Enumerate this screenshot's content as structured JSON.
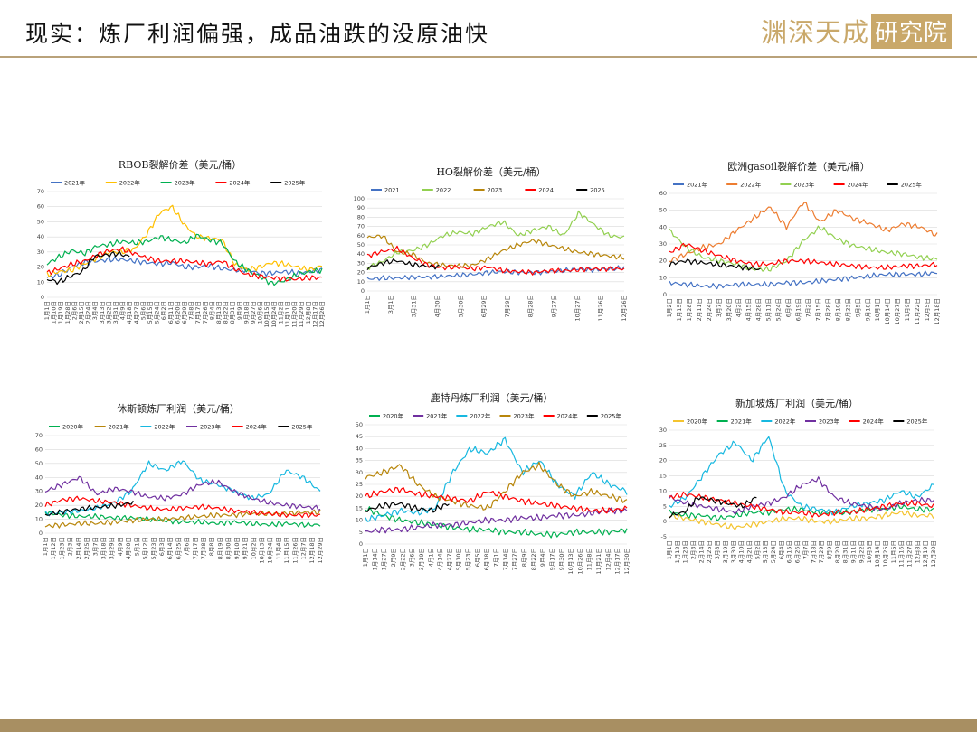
{
  "page": {
    "title": "现实：炼厂利润偏强，成品油跌的没原油快",
    "logo_text": "渊深天成",
    "logo_box": "研究院"
  },
  "chart_data": [
    {
      "type": "line",
      "title": "RBOB裂解价差（美元/桶）",
      "ylim": [
        0,
        70
      ],
      "yticks": [
        0,
        10,
        20,
        30,
        40,
        50,
        60,
        70
      ],
      "xticks": [
        "1月1日",
        "1月10日",
        "1月19日",
        "1月28日",
        "2月6日",
        "2月15日",
        "2月24日",
        "3月4日",
        "3月13日",
        "3月22日",
        "3月31日",
        "4月9日",
        "4月18日",
        "4月27日",
        "5月6日",
        "5月15日",
        "5月24日",
        "6月2日",
        "6月11日",
        "6月20日",
        "6月29日",
        "7月8日",
        "7月17日",
        "7月26日",
        "8月4日",
        "8月13日",
        "8月22日",
        "8月31日",
        "9月9日",
        "9月18日",
        "9月27日",
        "10月6日",
        "10月15日",
        "10月24日",
        "11月2日",
        "11月11日",
        "11月20日",
        "11月29日",
        "12月8日",
        "12月17日",
        "12月26日"
      ],
      "series": [
        {
          "name": "2021年",
          "color": "#4472c4",
          "end": 1.0,
          "values": [
            13,
            15,
            20,
            23,
            24,
            25,
            25,
            24,
            23,
            22,
            23,
            20,
            20,
            21,
            19,
            18,
            18,
            16,
            16,
            17,
            16,
            17,
            18
          ]
        },
        {
          "name": "2022年",
          "color": "#ffc000",
          "end": 1.0,
          "values": [
            15,
            17,
            18,
            22,
            26,
            30,
            30,
            32,
            42,
            56,
            60,
            48,
            40,
            39,
            38,
            22,
            18,
            20,
            23,
            22,
            20,
            18,
            21
          ]
        },
        {
          "name": "2023年",
          "color": "#00b050",
          "end": 1.0,
          "values": [
            22,
            27,
            31,
            29,
            34,
            35,
            37,
            36,
            37,
            40,
            38,
            36,
            41,
            38,
            36,
            24,
            18,
            14,
            9,
            11,
            15,
            17,
            18
          ]
        },
        {
          "name": "2024年",
          "color": "#ff0000",
          "end": 1.0,
          "values": [
            16,
            19,
            22,
            24,
            28,
            31,
            32,
            29,
            26,
            24,
            24,
            24,
            23,
            22,
            24,
            19,
            15,
            14,
            13,
            12,
            12,
            13,
            13
          ]
        },
        {
          "name": "2025年",
          "color": "#000000",
          "end": 0.3,
          "values": [
            12,
            10,
            14,
            17,
            27,
            28,
            29,
            27
          ]
        }
      ]
    },
    {
      "type": "line",
      "title": "HO裂解价差（美元/桶）",
      "ylim": [
        0,
        100
      ],
      "yticks": [
        0,
        10,
        20,
        30,
        40,
        50,
        60,
        70,
        80,
        90,
        100
      ],
      "xticks": [
        "1月1日",
        "3月1日",
        "3月31日",
        "4月30日",
        "5月30日",
        "6月29日",
        "7月29日",
        "8月28日",
        "9月27日",
        "10月27日",
        "11月26日",
        "12月26日"
      ],
      "series": [
        {
          "name": "2021",
          "color": "#4472c4",
          "end": 1.0,
          "values": [
            13,
            14,
            14,
            15,
            15,
            16,
            17,
            18,
            20,
            21,
            20,
            20,
            21,
            22,
            24,
            23,
            24,
            25
          ]
        },
        {
          "name": "2022",
          "color": "#92d050",
          "end": 1.0,
          "values": [
            25,
            32,
            42,
            44,
            50,
            60,
            64,
            62,
            70,
            75,
            60,
            66,
            70,
            60,
            85,
            72,
            60,
            58
          ]
        },
        {
          "name": "2023",
          "color": "#b8860b",
          "end": 1.0,
          "values": [
            58,
            60,
            42,
            40,
            30,
            28,
            27,
            28,
            35,
            44,
            50,
            55,
            50,
            46,
            42,
            40,
            38,
            36
          ]
        },
        {
          "name": "2024",
          "color": "#ff0000",
          "end": 1.0,
          "values": [
            38,
            43,
            46,
            36,
            28,
            25,
            26,
            24,
            26,
            22,
            21,
            20,
            22,
            22,
            23,
            24,
            24,
            24
          ]
        },
        {
          "name": "2025",
          "color": "#000000",
          "end": 0.28,
          "values": [
            25,
            30,
            33,
            29,
            27,
            26
          ]
        }
      ]
    },
    {
      "type": "line",
      "title": "欧洲gasoil裂解价差（美元/桶）",
      "ylim": [
        0,
        60
      ],
      "yticks": [
        0,
        10,
        20,
        30,
        40,
        50,
        60
      ],
      "xticks": [
        "1月2日",
        "1月15日",
        "1月28日",
        "2月11日",
        "2月24日",
        "3月7日",
        "3月20日",
        "4月2日",
        "4月15日",
        "4月28日",
        "5月11日",
        "5月24日",
        "6月6日",
        "6月19日",
        "7月2日",
        "7月15日",
        "7月28日",
        "8月10日",
        "8月23日",
        "9月5日",
        "9月18日",
        "10月1日",
        "10月14日",
        "10月27日",
        "11月9日",
        "11月22日",
        "12月5日",
        "12月18日"
      ],
      "series": [
        {
          "name": "2021年",
          "color": "#4472c4",
          "end": 1.0,
          "values": [
            7,
            6,
            5,
            5,
            6,
            6,
            6,
            7,
            7,
            8,
            9,
            10,
            11,
            12,
            12,
            12,
            13
          ]
        },
        {
          "name": "2022年",
          "color": "#ed7d31",
          "end": 1.0,
          "values": [
            20,
            24,
            28,
            30,
            38,
            45,
            52,
            40,
            55,
            43,
            50,
            45,
            42,
            38,
            42,
            40,
            35
          ]
        },
        {
          "name": "2023年",
          "color": "#92d050",
          "end": 1.0,
          "values": [
            38,
            28,
            22,
            20,
            18,
            15,
            15,
            20,
            32,
            40,
            33,
            29,
            27,
            25,
            24,
            22,
            21
          ]
        },
        {
          "name": "2024年",
          "color": "#ff0000",
          "end": 1.0,
          "values": [
            25,
            30,
            26,
            23,
            20,
            18,
            18,
            20,
            20,
            19,
            18,
            17,
            16,
            16,
            17,
            17,
            18
          ]
        },
        {
          "name": "2025年",
          "color": "#000000",
          "end": 0.34,
          "values": [
            18,
            20,
            19,
            18,
            17,
            16,
            15
          ]
        }
      ]
    },
    {
      "type": "line",
      "title": "休斯顿炼厂利润（美元/桶）",
      "ylim": [
        0,
        70
      ],
      "yticks": [
        0,
        10,
        20,
        30,
        40,
        50,
        60,
        70
      ],
      "xticks": [
        "1月1日",
        "1月12日",
        "1月23日",
        "2月3日",
        "2月14日",
        "2月25日",
        "3月7日",
        "3月18日",
        "3月29日",
        "4月9日",
        "4月20日",
        "5月1日",
        "5月12日",
        "5月23日",
        "6月3日",
        "6月14日",
        "6月25日",
        "7月6日",
        "7月17日",
        "7月28日",
        "8月8日",
        "8月19日",
        "8月30日",
        "9月10日",
        "9月21日",
        "10月2日",
        "10月13日",
        "10月24日",
        "11月4日",
        "11月15日",
        "11月26日",
        "12月7日",
        "12月18日",
        "12月29日"
      ],
      "series": [
        {
          "name": "2020年",
          "color": "#00b050",
          "end": 1.0,
          "values": [
            15,
            13,
            12,
            12,
            11,
            11,
            10,
            9,
            8,
            8,
            7,
            8,
            7,
            6,
            7,
            6,
            6
          ]
        },
        {
          "name": "2021年",
          "color": "#b8860b",
          "end": 1.0,
          "values": [
            5,
            6,
            7,
            7,
            8,
            9,
            10,
            10,
            11,
            12,
            13,
            13,
            14,
            14,
            14,
            15,
            15
          ]
        },
        {
          "name": "2022年",
          "color": "#17b8e0",
          "end": 1.0,
          "values": [
            14,
            15,
            16,
            18,
            22,
            30,
            50,
            45,
            52,
            38,
            35,
            30,
            25,
            28,
            45,
            40,
            30
          ]
        },
        {
          "name": "2023年",
          "color": "#7030a0",
          "end": 1.0,
          "values": [
            30,
            35,
            40,
            28,
            32,
            30,
            26,
            25,
            28,
            35,
            37,
            30,
            25,
            22,
            20,
            19,
            18
          ]
        },
        {
          "name": "2024年",
          "color": "#ff0000",
          "end": 1.0,
          "values": [
            20,
            24,
            25,
            23,
            22,
            20,
            18,
            17,
            18,
            19,
            18,
            16,
            15,
            14,
            13,
            13,
            13
          ]
        },
        {
          "name": "2025年",
          "color": "#000000",
          "end": 0.32,
          "values": [
            13,
            15,
            17,
            18,
            19,
            20,
            22
          ]
        }
      ]
    },
    {
      "type": "line",
      "title": "鹿特丹炼厂利润（美元/桶）",
      "ylim": [
        0,
        50
      ],
      "yticks": [
        0,
        5,
        10,
        15,
        20,
        25,
        30,
        35,
        40,
        45,
        50
      ],
      "xticks": [
        "1月1日",
        "1月14日",
        "1月27日",
        "2月9日",
        "2月22日",
        "3月6日",
        "3月19日",
        "4月1日",
        "4月14日",
        "4月27日",
        "5月10日",
        "5月23日",
        "6月5日",
        "6月18日",
        "7月1日",
        "7月14日",
        "7月27日",
        "8月9日",
        "8月22日",
        "9月4日",
        "9月17日",
        "9月30日",
        "10月13日",
        "10月26日",
        "11月8日",
        "11月21日",
        "12月4日",
        "12月17日",
        "12月30日"
      ],
      "series": [
        {
          "name": "2020年",
          "color": "#00b050",
          "end": 1.0,
          "values": [
            15,
            12,
            10,
            9,
            8,
            7,
            6,
            6,
            5,
            5,
            4,
            4,
            5,
            5,
            5,
            6
          ]
        },
        {
          "name": "2021年",
          "color": "#7030a0",
          "end": 1.0,
          "values": [
            5,
            6,
            6,
            7,
            8,
            8,
            9,
            10,
            10,
            11,
            11,
            12,
            12,
            13,
            14,
            14
          ]
        },
        {
          "name": "2022年",
          "color": "#17b8e0",
          "end": 1.0,
          "values": [
            10,
            12,
            14,
            13,
            15,
            30,
            40,
            38,
            44,
            30,
            35,
            25,
            20,
            30,
            25,
            22
          ]
        },
        {
          "name": "2023年",
          "color": "#b8860b",
          "end": 1.0,
          "values": [
            28,
            30,
            33,
            25,
            20,
            18,
            16,
            15,
            22,
            30,
            33,
            25,
            20,
            22,
            20,
            18
          ]
        },
        {
          "name": "2024年",
          "color": "#ff0000",
          "end": 1.0,
          "values": [
            20,
            22,
            23,
            21,
            20,
            19,
            18,
            22,
            20,
            18,
            17,
            16,
            15,
            14,
            14,
            15
          ]
        },
        {
          "name": "2025年",
          "color": "#000000",
          "end": 0.32,
          "values": [
            14,
            16,
            17,
            15,
            14,
            17
          ]
        }
      ]
    },
    {
      "type": "line",
      "title": "新加坡炼厂利润（美元/桶）",
      "ylim": [
        -5,
        30
      ],
      "yticks": [
        -5,
        0,
        5,
        10,
        15,
        20,
        25,
        30
      ],
      "xticks": [
        "1月1日",
        "1月12日",
        "1月23日",
        "2月3日",
        "2月14日",
        "2月25日",
        "3月8日",
        "3月19日",
        "3月30日",
        "4月10日",
        "4月21日",
        "5月2日",
        "5月13日",
        "5月24日",
        "6月4日",
        "6月15日",
        "6月26日",
        "7月7日",
        "7月18日",
        "7月29日",
        "8月9日",
        "8月20日",
        "8月31日",
        "9月11日",
        "9月22日",
        "10月3日",
        "10月14日",
        "10月25日",
        "11月5日",
        "11月16日",
        "11月27日",
        "12月8日",
        "12月19日",
        "12月30日"
      ],
      "series": [
        {
          "name": "2020年",
          "color": "#f4c430",
          "end": 1.0,
          "values": [
            2,
            1,
            0,
            -1,
            -2,
            -1,
            0,
            1,
            1,
            0,
            0,
            1,
            1,
            2,
            3,
            2,
            2
          ]
        },
        {
          "name": "2021年",
          "color": "#00b050",
          "end": 1.0,
          "values": [
            3,
            2,
            2,
            1,
            2,
            3,
            3,
            4,
            4,
            3,
            3,
            3,
            4,
            4,
            5,
            4,
            4
          ]
        },
        {
          "name": "2022年",
          "color": "#17b8e0",
          "end": 1.0,
          "values": [
            5,
            8,
            15,
            22,
            26,
            20,
            28,
            10,
            5,
            4,
            3,
            5,
            6,
            7,
            10,
            8,
            12
          ]
        },
        {
          "name": "2023年",
          "color": "#7030a0",
          "end": 1.0,
          "values": [
            8,
            6,
            5,
            4,
            3,
            5,
            6,
            8,
            12,
            14,
            8,
            6,
            5,
            4,
            6,
            7,
            7
          ]
        },
        {
          "name": "2024年",
          "color": "#ff0000",
          "end": 1.0,
          "values": [
            8,
            9,
            8,
            7,
            6,
            5,
            4,
            3,
            3,
            2,
            3,
            3,
            4,
            5,
            6,
            6,
            5
          ]
        },
        {
          "name": "2025年",
          "color": "#000000",
          "end": 0.33,
          "values": [
            2,
            3,
            8,
            7,
            6,
            5,
            8
          ]
        }
      ]
    }
  ]
}
